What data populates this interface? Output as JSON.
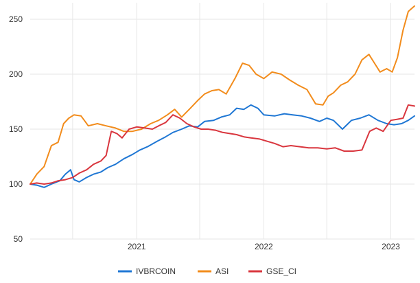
{
  "chart_data": {
    "type": "line",
    "title": "",
    "xlabel": "",
    "ylabel": "",
    "ylim": [
      50,
      265
    ],
    "xlim": [
      "2020-03-01",
      "2023-03-10"
    ],
    "y_ticks": [
      "50",
      "100",
      "150",
      "200",
      "250"
    ],
    "x_ticks": [
      {
        "label": "2021",
        "date": "2021-01-01"
      },
      {
        "label": "2022",
        "date": "2022-01-01"
      },
      {
        "label": "2023",
        "date": "2023-01-01"
      }
    ],
    "x_gridlines": [
      "2020-07-01",
      "2021-01-01",
      "2021-07-01",
      "2022-01-01",
      "2022-07-01",
      "2023-01-01"
    ],
    "grid": true,
    "legend_position": "bottom-center",
    "series": [
      {
        "name": "IVBRCOIN",
        "color": "#1f77d4",
        "x": [
          "2020-03-01",
          "2020-03-20",
          "2020-04-10",
          "2020-05-01",
          "2020-05-25",
          "2020-06-10",
          "2020-06-25",
          "2020-07-05",
          "2020-07-20",
          "2020-08-10",
          "2020-08-30",
          "2020-09-20",
          "2020-10-10",
          "2020-11-01",
          "2020-11-25",
          "2020-12-20",
          "2021-01-10",
          "2021-02-01",
          "2021-03-01",
          "2021-03-25",
          "2021-04-15",
          "2021-05-10",
          "2021-06-01",
          "2021-06-25",
          "2021-07-15",
          "2021-08-10",
          "2021-09-01",
          "2021-09-25",
          "2021-10-15",
          "2021-11-05",
          "2021-11-25",
          "2021-12-15",
          "2022-01-01",
          "2022-02-01",
          "2022-03-01",
          "2022-03-25",
          "2022-04-20",
          "2022-05-15",
          "2022-06-10",
          "2022-07-01",
          "2022-07-20",
          "2022-08-15",
          "2022-09-10",
          "2022-10-05",
          "2022-10-30",
          "2022-11-25",
          "2022-12-20",
          "2023-01-10",
          "2023-02-01",
          "2023-02-20",
          "2023-03-10"
        ],
        "values": [
          100,
          99,
          97,
          100,
          103,
          109,
          113,
          104,
          102,
          106,
          109,
          111,
          115,
          118,
          123,
          127,
          131,
          134,
          139,
          143,
          147,
          150,
          153,
          152,
          157,
          158,
          161,
          163,
          169,
          168,
          172,
          169,
          163,
          162,
          164,
          163,
          162,
          160,
          157,
          160,
          158,
          150,
          158,
          160,
          163,
          158,
          155,
          154,
          155,
          158,
          162
        ]
      },
      {
        "name": "ASI",
        "color": "#f28c1c",
        "x": [
          "2020-03-01",
          "2020-03-20",
          "2020-04-10",
          "2020-05-01",
          "2020-05-20",
          "2020-06-05",
          "2020-06-20",
          "2020-07-05",
          "2020-07-25",
          "2020-08-15",
          "2020-09-10",
          "2020-10-05",
          "2020-11-01",
          "2020-11-25",
          "2020-12-20",
          "2021-01-15",
          "2021-02-10",
          "2021-03-05",
          "2021-03-30",
          "2021-04-20",
          "2021-05-10",
          "2021-06-01",
          "2021-06-25",
          "2021-07-15",
          "2021-08-05",
          "2021-08-25",
          "2021-09-15",
          "2021-10-10",
          "2021-11-01",
          "2021-11-20",
          "2021-12-10",
          "2022-01-01",
          "2022-01-25",
          "2022-02-20",
          "2022-03-15",
          "2022-04-10",
          "2022-05-05",
          "2022-05-30",
          "2022-06-20",
          "2022-07-05",
          "2022-07-20",
          "2022-08-10",
          "2022-08-30",
          "2022-09-20",
          "2022-10-10",
          "2022-10-30",
          "2022-11-15",
          "2022-12-01",
          "2022-12-20",
          "2023-01-05",
          "2023-01-20",
          "2023-02-05",
          "2023-02-20",
          "2023-03-10"
        ],
        "values": [
          100,
          109,
          116,
          135,
          138,
          155,
          160,
          163,
          162,
          153,
          155,
          153,
          151,
          148,
          148,
          150,
          155,
          158,
          163,
          168,
          161,
          168,
          176,
          182,
          185,
          186,
          182,
          196,
          210,
          208,
          200,
          196,
          202,
          200,
          195,
          190,
          186,
          173,
          172,
          180,
          183,
          190,
          193,
          200,
          213,
          218,
          210,
          202,
          205,
          202,
          215,
          240,
          257,
          262
        ]
      },
      {
        "name": "GSE_CI",
        "color": "#d9363e",
        "x": [
          "2020-03-01",
          "2020-03-20",
          "2020-04-10",
          "2020-05-01",
          "2020-05-20",
          "2020-06-10",
          "2020-07-01",
          "2020-07-20",
          "2020-08-10",
          "2020-08-30",
          "2020-09-20",
          "2020-10-05",
          "2020-10-20",
          "2020-11-05",
          "2020-11-20",
          "2020-12-10",
          "2021-01-01",
          "2021-01-25",
          "2021-02-15",
          "2021-03-05",
          "2021-03-25",
          "2021-04-15",
          "2021-05-05",
          "2021-05-25",
          "2021-06-15",
          "2021-07-05",
          "2021-07-25",
          "2021-08-15",
          "2021-09-05",
          "2021-09-25",
          "2021-10-15",
          "2021-11-05",
          "2021-11-25",
          "2021-12-20",
          "2022-01-10",
          "2022-02-01",
          "2022-02-25",
          "2022-03-20",
          "2022-04-15",
          "2022-05-10",
          "2022-06-05",
          "2022-07-01",
          "2022-07-25",
          "2022-08-20",
          "2022-09-15",
          "2022-10-10",
          "2022-11-01",
          "2022-11-20",
          "2022-12-10",
          "2023-01-01",
          "2023-01-20",
          "2023-02-05",
          "2023-02-20",
          "2023-03-10"
        ],
        "values": [
          100,
          101,
          100,
          101,
          103,
          104,
          106,
          110,
          113,
          118,
          121,
          126,
          148,
          146,
          142,
          150,
          152,
          151,
          150,
          153,
          156,
          163,
          160,
          155,
          152,
          150,
          150,
          149,
          147,
          146,
          145,
          143,
          142,
          141,
          139,
          137,
          134,
          135,
          134,
          133,
          133,
          132,
          133,
          130,
          130,
          131,
          148,
          151,
          148,
          158,
          159,
          160,
          172,
          171
        ]
      }
    ]
  }
}
